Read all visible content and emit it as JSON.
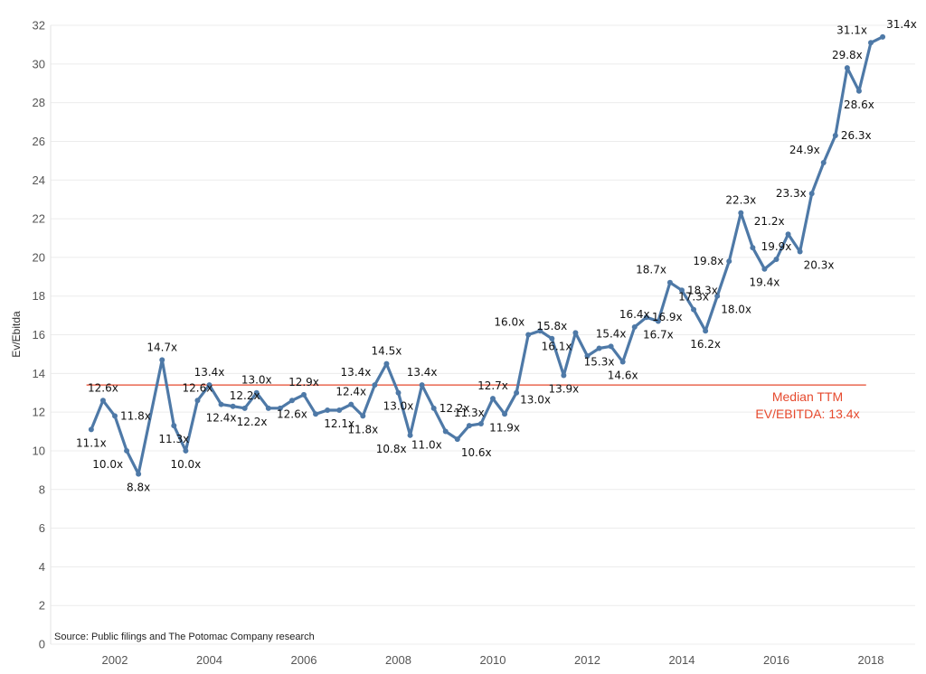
{
  "chart_data": {
    "type": "line",
    "title": "",
    "xlabel": "",
    "ylabel": "Ev/Ebitda",
    "ylim": [
      0,
      32
    ],
    "xlim": [
      2000.8,
      2019.3
    ],
    "yticks": [
      0,
      2,
      4,
      6,
      8,
      10,
      12,
      14,
      16,
      18,
      20,
      22,
      24,
      26,
      28,
      30,
      32
    ],
    "xticks": [
      2002,
      2004,
      2006,
      2008,
      2010,
      2012,
      2014,
      2016,
      2018
    ],
    "grid": "horizontal",
    "line_color": "#4e79a7",
    "series": [
      {
        "x": [
          2001.5,
          2001.75,
          2002.0,
          2002.25,
          2002.5,
          2003.0,
          2003.25,
          2003.5,
          2003.75,
          2004.0,
          2004.25,
          2004.5,
          2004.75,
          2005.0,
          2005.25,
          2005.5,
          2005.75,
          2006.0,
          2006.25,
          2006.5,
          2006.75,
          2007.0,
          2007.25,
          2007.5,
          2007.75,
          2008.0,
          2008.25,
          2008.5,
          2008.75,
          2009.0,
          2009.25,
          2009.5,
          2009.75,
          2010.0,
          2010.25,
          2010.5,
          2010.75,
          2011.0,
          2011.25,
          2011.5,
          2011.75,
          2012.0,
          2012.25,
          2012.5,
          2012.75,
          2013.0,
          2013.25,
          2013.5,
          2013.75,
          2014.0,
          2014.25,
          2014.5,
          2014.75,
          2015.0,
          2015.25,
          2015.5,
          2015.75,
          2016.0,
          2016.25,
          2016.5,
          2016.75,
          2017.0,
          2017.25,
          2017.5,
          2017.75,
          2018.0,
          2018.25
        ],
        "y": [
          11.1,
          12.6,
          11.8,
          10.0,
          8.8,
          14.7,
          11.3,
          10.0,
          12.6,
          13.4,
          12.4,
          12.3,
          12.2,
          13.0,
          12.2,
          12.2,
          12.6,
          12.9,
          11.9,
          12.1,
          12.1,
          12.4,
          11.8,
          13.4,
          14.5,
          13.0,
          10.8,
          13.4,
          12.2,
          11.0,
          10.6,
          11.3,
          11.4,
          12.7,
          11.9,
          13.0,
          16.0,
          16.2,
          15.8,
          13.9,
          16.1,
          14.9,
          15.3,
          15.4,
          14.6,
          16.4,
          16.9,
          16.7,
          18.7,
          18.3,
          17.3,
          16.2,
          18.0,
          19.8,
          22.3,
          20.5,
          19.4,
          19.9,
          21.2,
          20.3,
          23.3,
          24.9,
          26.3,
          29.8,
          28.6,
          31.1,
          31.4
        ]
      }
    ],
    "data_labels": [
      {
        "x": 2001.5,
        "y": 11.1,
        "text": "11.1x",
        "pos": "below"
      },
      {
        "x": 2001.75,
        "y": 12.6,
        "text": "12.6x",
        "pos": "above"
      },
      {
        "x": 2002.0,
        "y": 11.8,
        "text": "11.8x",
        "pos": "right"
      },
      {
        "x": 2002.25,
        "y": 10.0,
        "text": "10.0x",
        "pos": "below-left"
      },
      {
        "x": 2002.5,
        "y": 8.8,
        "text": "8.8x",
        "pos": "below"
      },
      {
        "x": 2003.0,
        "y": 14.7,
        "text": "14.7x",
        "pos": "above"
      },
      {
        "x": 2003.25,
        "y": 11.3,
        "text": "11.3x",
        "pos": "below"
      },
      {
        "x": 2003.5,
        "y": 10.0,
        "text": "10.0x",
        "pos": "below"
      },
      {
        "x": 2003.75,
        "y": 12.6,
        "text": "12.6x",
        "pos": "above"
      },
      {
        "x": 2004.0,
        "y": 13.4,
        "text": "13.4x",
        "pos": "above"
      },
      {
        "x": 2004.25,
        "y": 12.4,
        "text": "12.4x",
        "pos": "below"
      },
      {
        "x": 2004.75,
        "y": 12.2,
        "text": "12.2x",
        "pos": "above"
      },
      {
        "x": 2005.0,
        "y": 13.0,
        "text": "13.0x",
        "pos": "above"
      },
      {
        "x": 2004.9,
        "y": 12.2,
        "text": "12.2x",
        "pos": "below"
      },
      {
        "x": 2006.0,
        "y": 12.9,
        "text": "12.9x",
        "pos": "above"
      },
      {
        "x": 2005.75,
        "y": 12.6,
        "text": "12.6x",
        "pos": "below"
      },
      {
        "x": 2006.75,
        "y": 12.1,
        "text": "12.1x",
        "pos": "below"
      },
      {
        "x": 2007.0,
        "y": 12.4,
        "text": "12.4x",
        "pos": "above"
      },
      {
        "x": 2007.25,
        "y": 11.8,
        "text": "11.8x",
        "pos": "below"
      },
      {
        "x": 2007.5,
        "y": 13.4,
        "text": "13.4x",
        "pos": "above-left"
      },
      {
        "x": 2007.75,
        "y": 14.5,
        "text": "14.5x",
        "pos": "above"
      },
      {
        "x": 2008.0,
        "y": 13.0,
        "text": "13.0x",
        "pos": "below"
      },
      {
        "x": 2008.25,
        "y": 10.8,
        "text": "10.8x",
        "pos": "below-left"
      },
      {
        "x": 2008.5,
        "y": 13.4,
        "text": "13.4x",
        "pos": "above"
      },
      {
        "x": 2008.75,
        "y": 12.2,
        "text": "12.2x",
        "pos": "right"
      },
      {
        "x": 2009.0,
        "y": 11.0,
        "text": "11.0x",
        "pos": "below-left"
      },
      {
        "x": 2009.25,
        "y": 10.6,
        "text": "10.6x",
        "pos": "below-right"
      },
      {
        "x": 2009.5,
        "y": 11.3,
        "text": "11.3x",
        "pos": "above"
      },
      {
        "x": 2010.0,
        "y": 12.7,
        "text": "12.7x",
        "pos": "above"
      },
      {
        "x": 2010.25,
        "y": 11.9,
        "text": "11.9x",
        "pos": "below"
      },
      {
        "x": 2010.5,
        "y": 13.0,
        "text": "13.0x",
        "pos": "right-below"
      },
      {
        "x": 2010.75,
        "y": 16.0,
        "text": "16.0x",
        "pos": "above-left"
      },
      {
        "x": 2011.25,
        "y": 15.8,
        "text": "15.8x",
        "pos": "above"
      },
      {
        "x": 2011.5,
        "y": 13.9,
        "text": "13.9x",
        "pos": "below"
      },
      {
        "x": 2011.75,
        "y": 16.1,
        "text": "16.1x",
        "pos": "below-left"
      },
      {
        "x": 2012.25,
        "y": 15.3,
        "text": "15.3x",
        "pos": "below"
      },
      {
        "x": 2012.5,
        "y": 15.4,
        "text": "15.4x",
        "pos": "above"
      },
      {
        "x": 2012.75,
        "y": 14.6,
        "text": "14.6x",
        "pos": "below"
      },
      {
        "x": 2013.0,
        "y": 16.4,
        "text": "16.4x",
        "pos": "above"
      },
      {
        "x": 2013.25,
        "y": 16.9,
        "text": "16.9x",
        "pos": "right"
      },
      {
        "x": 2013.5,
        "y": 16.7,
        "text": "16.7x",
        "pos": "below"
      },
      {
        "x": 2013.75,
        "y": 18.7,
        "text": "18.7x",
        "pos": "above-left"
      },
      {
        "x": 2014.0,
        "y": 18.3,
        "text": "18.3x",
        "pos": "right"
      },
      {
        "x": 2014.25,
        "y": 17.3,
        "text": "17.3x",
        "pos": "above"
      },
      {
        "x": 2014.5,
        "y": 16.2,
        "text": "16.2x",
        "pos": "below"
      },
      {
        "x": 2014.75,
        "y": 18.0,
        "text": "18.0x",
        "pos": "below-right"
      },
      {
        "x": 2015.0,
        "y": 19.8,
        "text": "19.8x",
        "pos": "left"
      },
      {
        "x": 2015.25,
        "y": 22.3,
        "text": "22.3x",
        "pos": "above"
      },
      {
        "x": 2015.75,
        "y": 19.4,
        "text": "19.4x",
        "pos": "below"
      },
      {
        "x": 2016.0,
        "y": 19.9,
        "text": "19.9x",
        "pos": "above"
      },
      {
        "x": 2016.25,
        "y": 21.2,
        "text": "21.2x",
        "pos": "above-left"
      },
      {
        "x": 2016.5,
        "y": 20.3,
        "text": "20.3x",
        "pos": "below-right"
      },
      {
        "x": 2016.75,
        "y": 23.3,
        "text": "23.3x",
        "pos": "left"
      },
      {
        "x": 2017.0,
        "y": 24.9,
        "text": "24.9x",
        "pos": "above-left"
      },
      {
        "x": 2017.25,
        "y": 26.3,
        "text": "26.3x",
        "pos": "right"
      },
      {
        "x": 2017.5,
        "y": 29.8,
        "text": "29.8x",
        "pos": "above"
      },
      {
        "x": 2017.75,
        "y": 28.6,
        "text": "28.6x",
        "pos": "below"
      },
      {
        "x": 2018.0,
        "y": 31.1,
        "text": "31.1x",
        "pos": "above-left"
      },
      {
        "x": 2018.25,
        "y": 31.4,
        "text": "31.4x",
        "pos": "above-right"
      }
    ],
    "reference_line": {
      "y": 13.4,
      "x_range": [
        2001.4,
        2017.9
      ],
      "color": "#e64a2e"
    },
    "annotation": {
      "line1": "Median TTM",
      "line2": "EV/EBITDA: 13.4x"
    },
    "source": "Source: Public filings and The Potomac Company research"
  }
}
